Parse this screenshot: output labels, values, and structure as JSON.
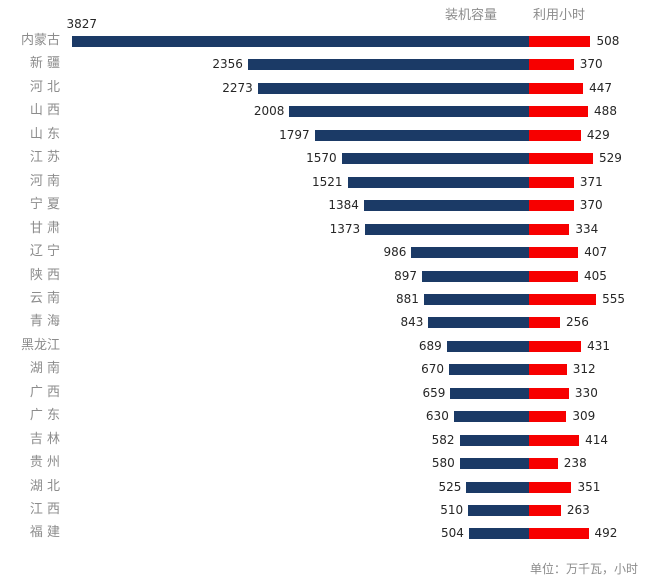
{
  "header": {
    "capacity_label": "装机容量",
    "hours_label": "利用小时"
  },
  "footnote": "单位：万千瓦，小时",
  "colors": {
    "capacity_bar": "#1b3a66",
    "hours_bar": "#f70000",
    "header_text": "#8c8c8c",
    "category_text": "#8c8c8c",
    "value_text": "#262626"
  },
  "chart_data": {
    "type": "bar",
    "subtype": "diverging-horizontal-tornado",
    "unit": "万千瓦，小时",
    "legend_position": "top",
    "value_labels_shown": true,
    "categories": [
      "内蒙古",
      "新疆",
      "河北",
      "山西",
      "山东",
      "江苏",
      "河南",
      "宁夏",
      "甘肃",
      "辽宁",
      "陕西",
      "云南",
      "青海",
      "黑龙江",
      "湖南",
      "广西",
      "广东",
      "吉林",
      "贵州",
      "湖北",
      "江西",
      "福建"
    ],
    "display_labels": [
      "内蒙古",
      "新 疆",
      "河 北",
      "山 西",
      "山 东",
      "江 苏",
      "河 南",
      "宁 夏",
      "甘 肃",
      "辽 宁",
      "陕 西",
      "云 南",
      "青 海",
      "黑龙江",
      "湖 南",
      "广 西",
      "广 东",
      "吉 林",
      "贵 州",
      "湖 北",
      "江 西",
      "福 建"
    ],
    "series": [
      {
        "name": "装机容量",
        "direction": "left",
        "color": "#1b3a66",
        "values": [
          3827,
          2356,
          2273,
          2008,
          1797,
          1570,
          1521,
          1384,
          1373,
          986,
          897,
          881,
          843,
          689,
          670,
          659,
          630,
          582,
          580,
          525,
          510,
          504
        ]
      },
      {
        "name": "利用小时",
        "direction": "right",
        "color": "#f70000",
        "values": [
          508,
          370,
          447,
          488,
          429,
          529,
          371,
          370,
          334,
          407,
          405,
          555,
          256,
          431,
          312,
          330,
          309,
          414,
          238,
          351,
          263,
          492
        ]
      }
    ]
  }
}
